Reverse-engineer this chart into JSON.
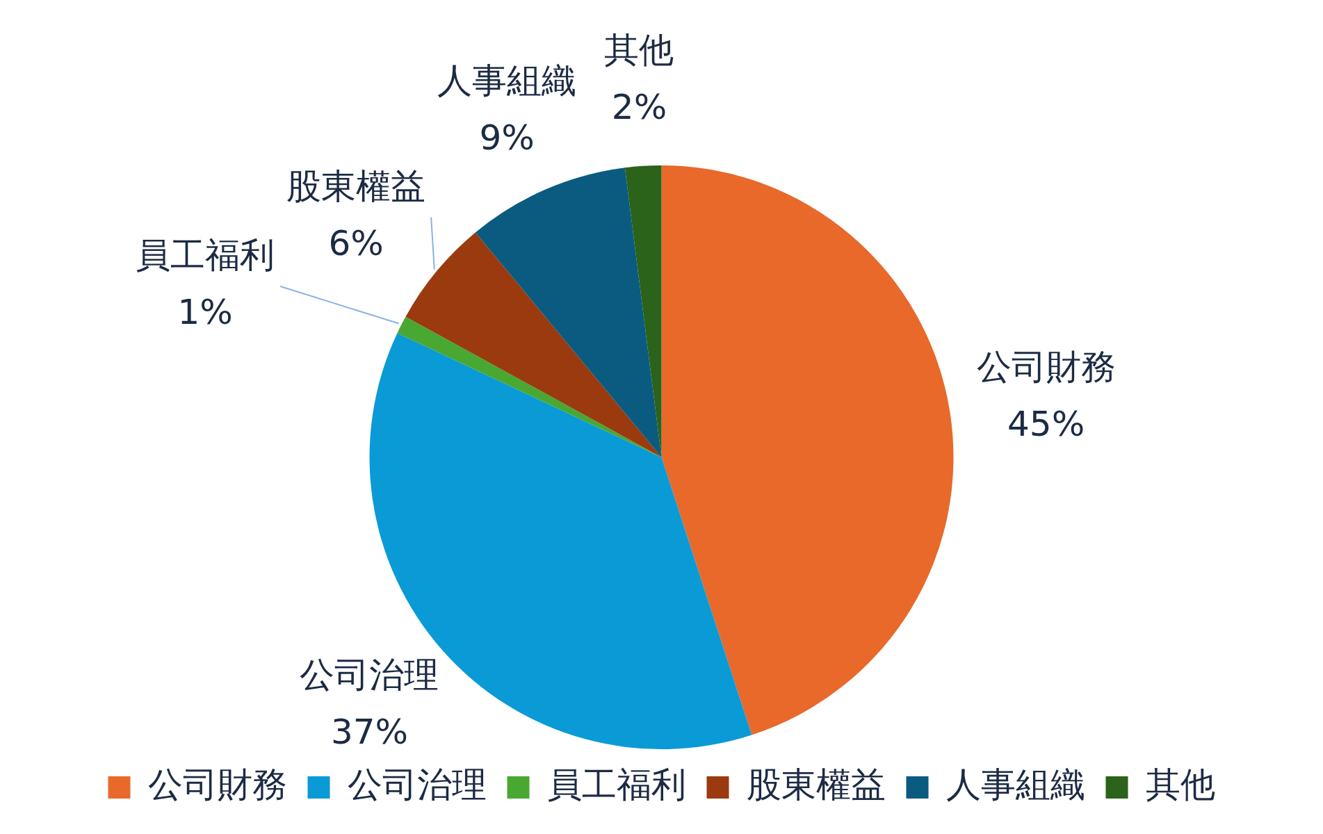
{
  "chart_data": {
    "type": "pie",
    "categories": [
      "公司財務",
      "公司治理",
      "員工福利",
      "股東權益",
      "人事組織",
      "其他"
    ],
    "values": [
      45,
      37,
      1,
      6,
      9,
      2
    ],
    "value_labels": [
      "45%",
      "37%",
      "1%",
      "6%",
      "9%",
      "2%"
    ],
    "colors": [
      "#e8692a",
      "#0a9ad6",
      "#48a832",
      "#9b3a0e",
      "#0b5b80",
      "#2a6319"
    ],
    "legend": "bottom"
  }
}
